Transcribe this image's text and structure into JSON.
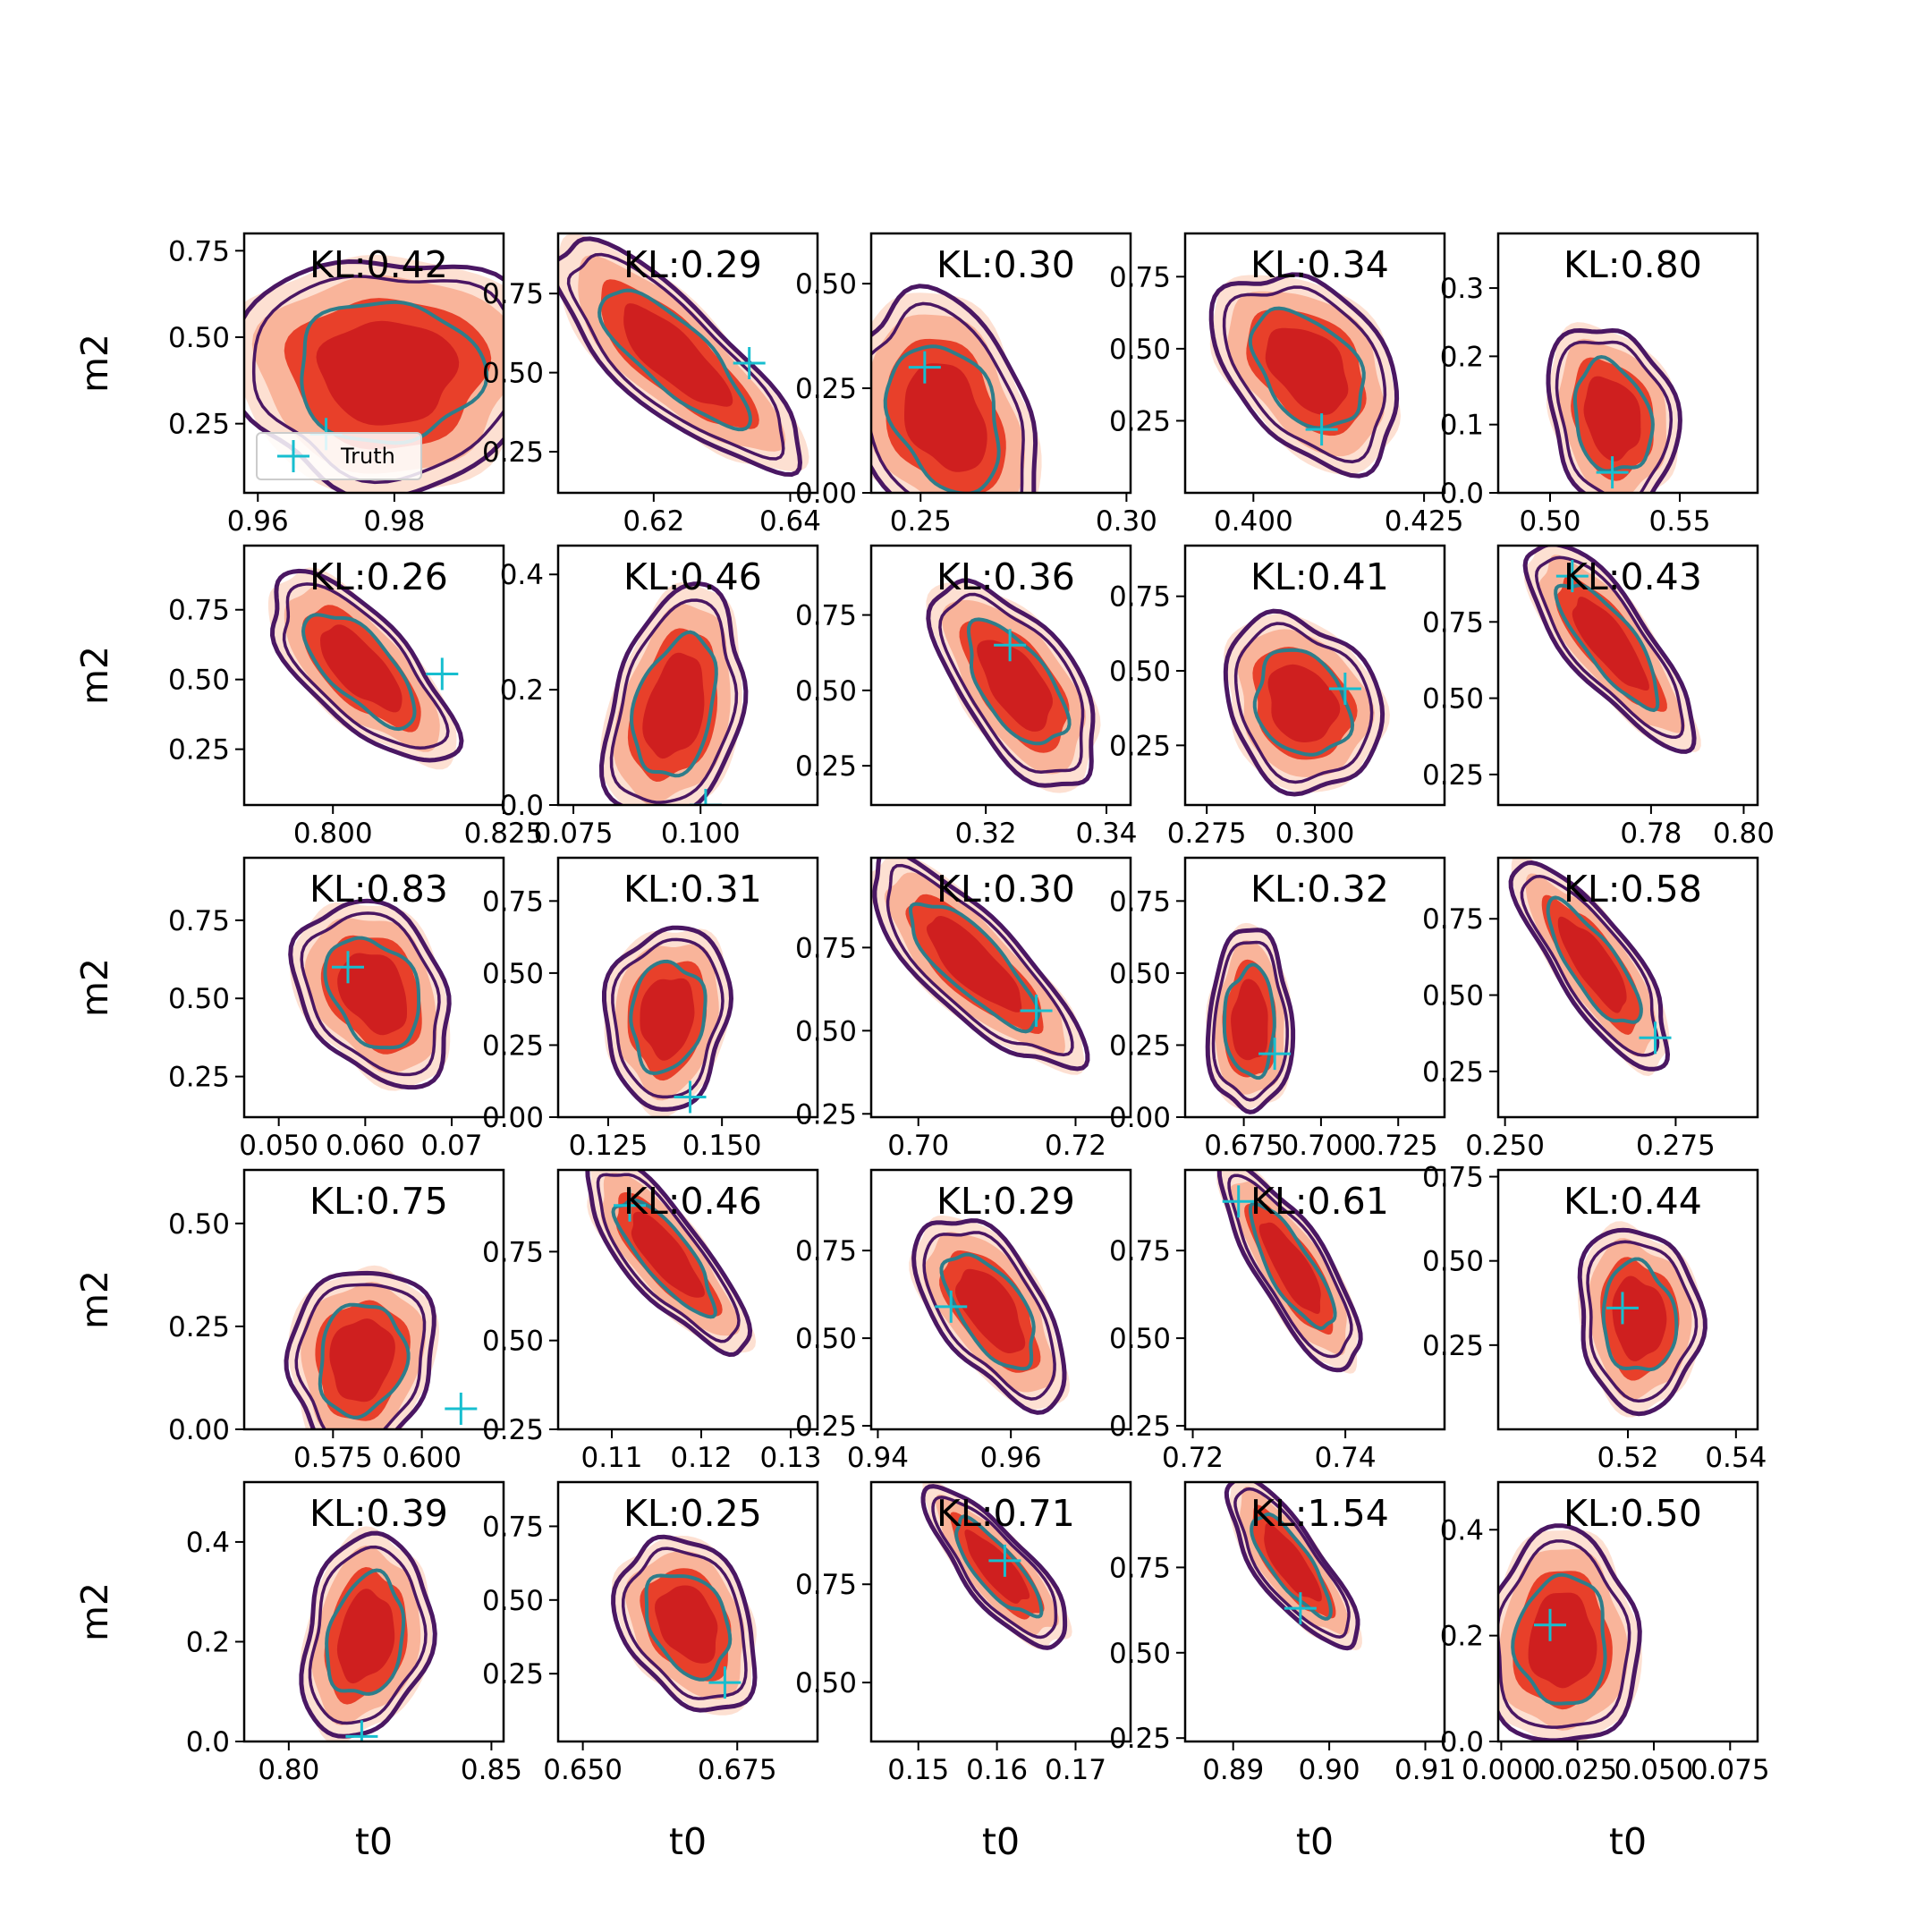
{
  "figure": {
    "xlabel": "t0",
    "ylabel": "m2",
    "legend_label": "Truth"
  },
  "colors": {
    "fill_outer": "#fde0d2",
    "fill_mid": "#f9b49a",
    "fill_inner": "#e8402a",
    "fill_core": "#cf1f1f",
    "contour_outer": "#4a1763",
    "contour_inner": "#2e7d8a",
    "truth_marker": "#17becf"
  },
  "chart_data": [
    {
      "type": "contour",
      "row": 0,
      "col": 0,
      "kl": "KL:0.42",
      "xlim": [
        0.958,
        0.996
      ],
      "ylim": [
        0.05,
        0.8
      ],
      "xticks": [
        0.96,
        0.98
      ],
      "xticklabels": [
        "0.96",
        "0.98"
      ],
      "yticks": [
        0.25,
        0.5,
        0.75
      ],
      "yticklabels": [
        "0.25",
        "0.50",
        "0.75"
      ],
      "center": [
        0.979,
        0.4
      ],
      "spread": [
        0.01,
        0.15
      ],
      "rho": 0.0,
      "truth": [
        0.97,
        0.22
      ]
    },
    {
      "type": "contour",
      "row": 0,
      "col": 1,
      "kl": "KL:0.29",
      "xlim": [
        0.606,
        0.644
      ],
      "ylim": [
        0.12,
        0.94
      ],
      "xticks": [
        0.62,
        0.64
      ],
      "xticklabels": [
        "0.62",
        "0.64"
      ],
      "yticks": [
        0.25,
        0.5,
        0.75
      ],
      "yticklabels": [
        "0.25",
        "0.50",
        "0.75"
      ],
      "center": [
        0.623,
        0.55
      ],
      "spread": [
        0.008,
        0.16
      ],
      "rho": -0.8,
      "truth": [
        0.634,
        0.53
      ]
    },
    {
      "type": "contour",
      "row": 0,
      "col": 2,
      "kl": "KL:0.30",
      "xlim": [
        0.238,
        0.301
      ],
      "ylim": [
        0.0,
        0.62
      ],
      "xticks": [
        0.25,
        0.3
      ],
      "xticklabels": [
        "0.25",
        "0.30"
      ],
      "yticks": [
        0.0,
        0.25,
        0.5
      ],
      "yticklabels": [
        "0.00",
        "0.25",
        "0.50"
      ],
      "center": [
        0.256,
        0.18
      ],
      "spread": [
        0.01,
        0.13
      ],
      "rho": -0.3,
      "truth": [
        0.251,
        0.3
      ]
    },
    {
      "type": "contour",
      "row": 0,
      "col": 3,
      "kl": "KL:0.34",
      "xlim": [
        0.39,
        0.428
      ],
      "ylim": [
        0.0,
        0.9
      ],
      "xticks": [
        0.4,
        0.425
      ],
      "xticklabels": [
        "0.400",
        "0.425"
      ],
      "yticks": [
        0.25,
        0.5,
        0.75
      ],
      "yticklabels": [
        "0.25",
        "0.50",
        "0.75"
      ],
      "center": [
        0.408,
        0.43
      ],
      "spread": [
        0.006,
        0.15
      ],
      "rho": -0.4,
      "truth": [
        0.41,
        0.22
      ]
    },
    {
      "type": "contour",
      "row": 0,
      "col": 4,
      "kl": "KL:0.80",
      "xlim": [
        0.48,
        0.58
      ],
      "ylim": [
        0.0,
        0.38
      ],
      "xticks": [
        0.5,
        0.55
      ],
      "xticklabels": [
        "0.50",
        "0.55"
      ],
      "yticks": [
        0.0,
        0.1,
        0.2,
        0.3
      ],
      "yticklabels": [
        "0.0",
        "0.1",
        "0.2",
        "0.3"
      ],
      "center": [
        0.524,
        0.11
      ],
      "spread": [
        0.011,
        0.06
      ],
      "rho": -0.2,
      "truth": [
        0.524,
        0.03
      ]
    },
    {
      "type": "contour",
      "row": 1,
      "col": 0,
      "kl": "KL:0.26",
      "xlim": [
        0.787,
        0.825
      ],
      "ylim": [
        0.05,
        0.98
      ],
      "xticks": [
        0.8,
        0.825
      ],
      "xticklabels": [
        "0.800",
        "0.825"
      ],
      "yticks": [
        0.25,
        0.5,
        0.75
      ],
      "yticklabels": [
        "0.25",
        "0.50",
        "0.75"
      ],
      "center": [
        0.804,
        0.54
      ],
      "spread": [
        0.006,
        0.15
      ],
      "rho": -0.7,
      "truth": [
        0.816,
        0.52
      ]
    },
    {
      "type": "contour",
      "row": 1,
      "col": 1,
      "kl": "KL:0.46",
      "xlim": [
        0.072,
        0.123
      ],
      "ylim": [
        0.0,
        0.45
      ],
      "xticks": [
        0.075,
        0.1
      ],
      "xticklabels": [
        "0.075",
        "0.100"
      ],
      "yticks": [
        0.0,
        0.2,
        0.4
      ],
      "yticklabels": [
        "0.0",
        "0.2",
        "0.4"
      ],
      "center": [
        0.095,
        0.17
      ],
      "spread": [
        0.006,
        0.09
      ],
      "rho": 0.3,
      "truth": [
        0.101,
        0.0
      ]
    },
    {
      "type": "contour",
      "row": 1,
      "col": 2,
      "kl": "KL:0.36",
      "xlim": [
        0.301,
        0.344
      ],
      "ylim": [
        0.12,
        0.98
      ],
      "xticks": [
        0.32,
        0.34
      ],
      "xticklabels": [
        "0.32",
        "0.34"
      ],
      "yticks": [
        0.25,
        0.5,
        0.75
      ],
      "yticklabels": [
        "0.25",
        "0.50",
        "0.75"
      ],
      "center": [
        0.325,
        0.52
      ],
      "spread": [
        0.006,
        0.15
      ],
      "rho": -0.6,
      "truth": [
        0.324,
        0.65
      ]
    },
    {
      "type": "contour",
      "row": 1,
      "col": 3,
      "kl": "KL:0.41",
      "xlim": [
        0.27,
        0.33
      ],
      "ylim": [
        0.05,
        0.92
      ],
      "xticks": [
        0.275,
        0.3
      ],
      "xticklabels": [
        "0.275",
        "0.300"
      ],
      "yticks": [
        0.25,
        0.5,
        0.75
      ],
      "yticklabels": [
        "0.25",
        "0.50",
        "0.75"
      ],
      "center": [
        0.297,
        0.39
      ],
      "spread": [
        0.008,
        0.13
      ],
      "rho": -0.2,
      "truth": [
        0.307,
        0.44
      ]
    },
    {
      "type": "contour",
      "row": 1,
      "col": 4,
      "kl": "KL:0.43",
      "xlim": [
        0.747,
        0.803
      ],
      "ylim": [
        0.15,
        1.0
      ],
      "xticks": [
        0.78,
        0.8
      ],
      "xticklabels": [
        "0.78",
        "0.80"
      ],
      "yticks": [
        0.25,
        0.5,
        0.75
      ],
      "yticklabels": [
        "0.25",
        "0.50",
        "0.75"
      ],
      "center": [
        0.771,
        0.68
      ],
      "spread": [
        0.008,
        0.15
      ],
      "rho": -0.8,
      "truth": [
        0.763,
        0.9
      ]
    },
    {
      "type": "contour",
      "row": 2,
      "col": 0,
      "kl": "KL:0.83",
      "xlim": [
        0.046,
        0.076
      ],
      "ylim": [
        0.12,
        0.95
      ],
      "xticks": [
        0.05,
        0.06,
        0.07
      ],
      "xticklabels": [
        "0.050",
        "0.060",
        "0.07"
      ],
      "yticks": [
        0.25,
        0.5,
        0.75
      ],
      "yticklabels": [
        "0.25",
        "0.50",
        "0.75"
      ],
      "center": [
        0.061,
        0.52
      ],
      "spread": [
        0.004,
        0.13
      ],
      "rho": -0.3,
      "truth": [
        0.058,
        0.6
      ]
    },
    {
      "type": "contour",
      "row": 2,
      "col": 1,
      "kl": "KL:0.31",
      "xlim": [
        0.114,
        0.171
      ],
      "ylim": [
        0.0,
        0.9
      ],
      "xticks": [
        0.125,
        0.15
      ],
      "xticklabels": [
        "0.125",
        "0.150"
      ],
      "yticks": [
        0.0,
        0.25,
        0.5,
        0.75
      ],
      "yticklabels": [
        "0.00",
        "0.25",
        "0.50",
        "0.75"
      ],
      "center": [
        0.138,
        0.35
      ],
      "spread": [
        0.006,
        0.14
      ],
      "rho": 0.1,
      "truth": [
        0.143,
        0.07
      ]
    },
    {
      "type": "contour",
      "row": 2,
      "col": 2,
      "kl": "KL:0.30",
      "xlim": [
        0.694,
        0.727
      ],
      "ylim": [
        0.24,
        1.02
      ],
      "xticks": [
        0.7,
        0.72
      ],
      "xticklabels": [
        "0.70",
        "0.72"
      ],
      "yticks": [
        0.25,
        0.5,
        0.75
      ],
      "yticklabels": [
        "0.25",
        "0.50",
        "0.75"
      ],
      "center": [
        0.707,
        0.7
      ],
      "spread": [
        0.006,
        0.14
      ],
      "rho": -0.8,
      "truth": [
        0.715,
        0.56
      ]
    },
    {
      "type": "contour",
      "row": 2,
      "col": 3,
      "kl": "KL:0.32",
      "xlim": [
        0.656,
        0.74
      ],
      "ylim": [
        0.0,
        0.9
      ],
      "xticks": [
        0.675,
        0.7,
        0.725
      ],
      "xticklabels": [
        "0.675",
        "0.700",
        "0.725"
      ],
      "yticks": [
        0.0,
        0.25,
        0.5,
        0.75
      ],
      "yticklabels": [
        "0.00",
        "0.25",
        "0.50",
        "0.75"
      ],
      "center": [
        0.677,
        0.33
      ],
      "spread": [
        0.006,
        0.14
      ],
      "rho": 0.0,
      "truth": [
        0.685,
        0.22
      ]
    },
    {
      "type": "contour",
      "row": 2,
      "col": 4,
      "kl": "KL:0.58",
      "xlim": [
        0.249,
        0.287
      ],
      "ylim": [
        0.1,
        0.95
      ],
      "xticks": [
        0.25,
        0.275
      ],
      "xticklabels": [
        "0.250",
        "0.275"
      ],
      "yticks": [
        0.25,
        0.5,
        0.75
      ],
      "yticklabels": [
        "0.25",
        "0.50",
        "0.75"
      ],
      "center": [
        0.263,
        0.6
      ],
      "spread": [
        0.005,
        0.15
      ],
      "rho": -0.8,
      "truth": [
        0.272,
        0.36
      ]
    },
    {
      "type": "contour",
      "row": 3,
      "col": 0,
      "kl": "KL:0.75",
      "xlim": [
        0.55,
        0.623
      ],
      "ylim": [
        0.0,
        0.63
      ],
      "xticks": [
        0.575,
        0.6
      ],
      "xticklabels": [
        "0.575",
        "0.600"
      ],
      "yticks": [
        0.0,
        0.25,
        0.5
      ],
      "yticklabels": [
        "0.00",
        "0.25",
        "0.50"
      ],
      "center": [
        0.583,
        0.17
      ],
      "spread": [
        0.009,
        0.1
      ],
      "rho": 0.1,
      "truth": [
        0.611,
        0.05
      ]
    },
    {
      "type": "contour",
      "row": 3,
      "col": 1,
      "kl": "KL:0.46",
      "xlim": [
        0.104,
        0.133
      ],
      "ylim": [
        0.25,
        0.98
      ],
      "xticks": [
        0.11,
        0.12,
        0.13
      ],
      "xticklabels": [
        "0.11",
        "0.12",
        "0.13"
      ],
      "yticks": [
        0.25,
        0.5,
        0.75
      ],
      "yticklabels": [
        "0.25",
        "0.50",
        "0.75"
      ],
      "center": [
        0.116,
        0.74
      ],
      "spread": [
        0.004,
        0.12
      ],
      "rho": -0.8,
      "truth": [
        0.112,
        0.88
      ]
    },
    {
      "type": "contour",
      "row": 3,
      "col": 2,
      "kl": "KL:0.29",
      "xlim": [
        0.939,
        0.978
      ],
      "ylim": [
        0.24,
        0.98
      ],
      "xticks": [
        0.94,
        0.96
      ],
      "xticklabels": [
        "0.94",
        "0.96"
      ],
      "yticks": [
        0.25,
        0.5,
        0.75
      ],
      "yticklabels": [
        "0.25",
        "0.50",
        "0.75"
      ],
      "center": [
        0.957,
        0.58
      ],
      "spread": [
        0.005,
        0.12
      ],
      "rho": -0.6,
      "truth": [
        0.951,
        0.59
      ]
    },
    {
      "type": "contour",
      "row": 3,
      "col": 3,
      "kl": "KL:0.61",
      "xlim": [
        0.719,
        0.753
      ],
      "ylim": [
        0.24,
        0.98
      ],
      "xticks": [
        0.72,
        0.74
      ],
      "xticklabels": [
        "0.72",
        "0.74"
      ],
      "yticks": [
        0.25,
        0.5,
        0.75
      ],
      "yticklabels": [
        "0.25",
        "0.50",
        "0.75"
      ],
      "center": [
        0.733,
        0.7
      ],
      "spread": [
        0.004,
        0.13
      ],
      "rho": -0.8,
      "truth": [
        0.726,
        0.89
      ]
    },
    {
      "type": "contour",
      "row": 3,
      "col": 4,
      "kl": "KL:0.44",
      "xlim": [
        0.496,
        0.544
      ],
      "ylim": [
        0.0,
        0.77
      ],
      "xticks": [
        0.52,
        0.54
      ],
      "xticklabels": [
        "0.52",
        "0.54"
      ],
      "yticks": [
        0.25,
        0.5,
        0.75
      ],
      "yticklabels": [
        "0.25",
        "0.50",
        "0.75"
      ],
      "center": [
        0.522,
        0.33
      ],
      "spread": [
        0.005,
        0.12
      ],
      "rho": -0.1,
      "truth": [
        0.519,
        0.36
      ]
    },
    {
      "type": "contour",
      "row": 4,
      "col": 0,
      "kl": "KL:0.39",
      "xlim": [
        0.789,
        0.853
      ],
      "ylim": [
        0.0,
        0.52
      ],
      "xticks": [
        0.8,
        0.85
      ],
      "xticklabels": [
        "0.80",
        "0.85"
      ],
      "yticks": [
        0.0,
        0.2,
        0.4
      ],
      "yticklabels": [
        "0.0",
        "0.2",
        "0.4"
      ],
      "center": [
        0.819,
        0.21
      ],
      "spread": [
        0.007,
        0.09
      ],
      "rho": 0.2,
      "truth": [
        0.818,
        0.01
      ]
    },
    {
      "type": "contour",
      "row": 4,
      "col": 1,
      "kl": "KL:0.25",
      "xlim": [
        0.646,
        0.688
      ],
      "ylim": [
        0.02,
        0.9
      ],
      "xticks": [
        0.65,
        0.675
      ],
      "xticklabels": [
        "0.650",
        "0.675"
      ],
      "yticks": [
        0.25,
        0.5,
        0.75
      ],
      "yticklabels": [
        "0.25",
        "0.50",
        "0.75"
      ],
      "center": [
        0.667,
        0.42
      ],
      "spread": [
        0.005,
        0.13
      ],
      "rho": -0.3,
      "truth": [
        0.673,
        0.22
      ]
    },
    {
      "type": "contour",
      "row": 4,
      "col": 2,
      "kl": "KL:0.71",
      "xlim": [
        0.144,
        0.177
      ],
      "ylim": [
        0.35,
        1.01
      ],
      "xticks": [
        0.15,
        0.16,
        0.17
      ],
      "xticklabels": [
        "0.15",
        "0.16",
        "0.17"
      ],
      "yticks": [
        0.5,
        0.75
      ],
      "yticklabels": [
        "0.50",
        "0.75"
      ],
      "center": [
        0.16,
        0.79
      ],
      "spread": [
        0.004,
        0.09
      ],
      "rho": -0.8,
      "truth": [
        0.161,
        0.81
      ]
    },
    {
      "type": "contour",
      "row": 4,
      "col": 3,
      "kl": "KL:1.54",
      "xlim": [
        0.885,
        0.912
      ],
      "ylim": [
        0.24,
        1.0
      ],
      "xticks": [
        0.89,
        0.9,
        0.91
      ],
      "xticklabels": [
        "0.89",
        "0.90",
        "0.91"
      ],
      "yticks": [
        0.25,
        0.5,
        0.75
      ],
      "yticklabels": [
        "0.25",
        "0.50",
        "0.75"
      ],
      "center": [
        0.896,
        0.76
      ],
      "spread": [
        0.003,
        0.11
      ],
      "rho": -0.8,
      "truth": [
        0.897,
        0.63
      ]
    },
    {
      "type": "contour",
      "row": 4,
      "col": 4,
      "kl": "KL:0.50",
      "xlim": [
        -0.001,
        0.084
      ],
      "ylim": [
        0.0,
        0.49
      ],
      "xticks": [
        0.0,
        0.025,
        0.05,
        0.075
      ],
      "xticklabels": [
        "0.000",
        "0.025",
        "0.050",
        "0.075"
      ],
      "yticks": [
        0.0,
        0.2,
        0.4
      ],
      "yticklabels": [
        "0.0",
        "0.2",
        "0.4"
      ],
      "center": [
        0.02,
        0.19
      ],
      "spread": [
        0.011,
        0.09
      ],
      "rho": 0.0,
      "truth": [
        0.016,
        0.22
      ]
    }
  ]
}
